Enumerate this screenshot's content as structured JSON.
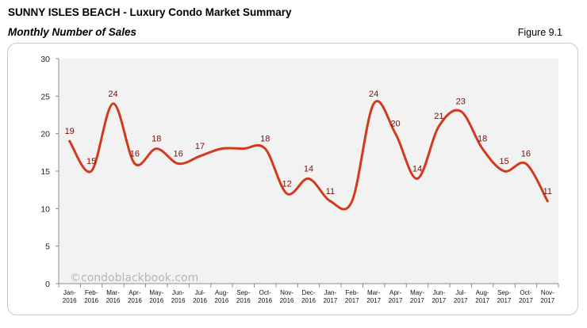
{
  "header": {
    "title": "SUNNY ISLES BEACH - Luxury Condo Market Summary",
    "subtitle": "Monthly Number of Sales",
    "figure_label": "Figure 9.1"
  },
  "watermark": "©condoblackbook.com",
  "colors": {
    "line": "#d2391d",
    "label": "#7b0f06",
    "plot_background": "#f2f2f2",
    "frame_border": "#c9c9c9"
  },
  "chart_data": {
    "type": "line",
    "title": "",
    "xlabel": "",
    "ylabel": "",
    "ylim": [
      0,
      30
    ],
    "yticks": [
      0,
      5,
      10,
      15,
      20,
      25,
      30
    ],
    "grid": false,
    "legend": "none",
    "smooth": true,
    "categories": [
      [
        "Jan-",
        "2016"
      ],
      [
        "Feb-",
        "2016"
      ],
      [
        "Mar-",
        "2016"
      ],
      [
        "Apr-",
        "2016"
      ],
      [
        "May-",
        "2016"
      ],
      [
        "Jun-",
        "2016"
      ],
      [
        "Jul-",
        "2016"
      ],
      [
        "Aug-",
        "2016"
      ],
      [
        "Sep-",
        "2016"
      ],
      [
        "Oct-",
        "2016"
      ],
      [
        "Nov-",
        "2016"
      ],
      [
        "Dec-",
        "2016"
      ],
      [
        "Jan-",
        "2017"
      ],
      [
        "Feb-",
        "2017"
      ],
      [
        "Mar-",
        "2017"
      ],
      [
        "Apr-",
        "2017"
      ],
      [
        "May-",
        "2017"
      ],
      [
        "Jun-",
        "2017"
      ],
      [
        "Jul-",
        "2017"
      ],
      [
        "Aug-",
        "2017"
      ],
      [
        "Sep-",
        "2017"
      ],
      [
        "Oct-",
        "2017"
      ],
      [
        "Nov-",
        "2017"
      ]
    ],
    "series": [
      {
        "values": [
          19,
          15,
          24,
          16,
          18,
          16,
          17,
          18,
          18,
          18,
          12,
          14,
          11,
          11,
          24,
          20,
          14,
          21,
          23,
          18,
          15,
          16,
          11
        ],
        "labels": [
          "19",
          "15",
          "24",
          "16",
          "18",
          "16",
          "17",
          "",
          "",
          "18",
          "12",
          "14",
          "11",
          "",
          "24",
          "20",
          "14",
          "21",
          "23",
          "18",
          "15",
          "16",
          "11"
        ]
      }
    ]
  }
}
